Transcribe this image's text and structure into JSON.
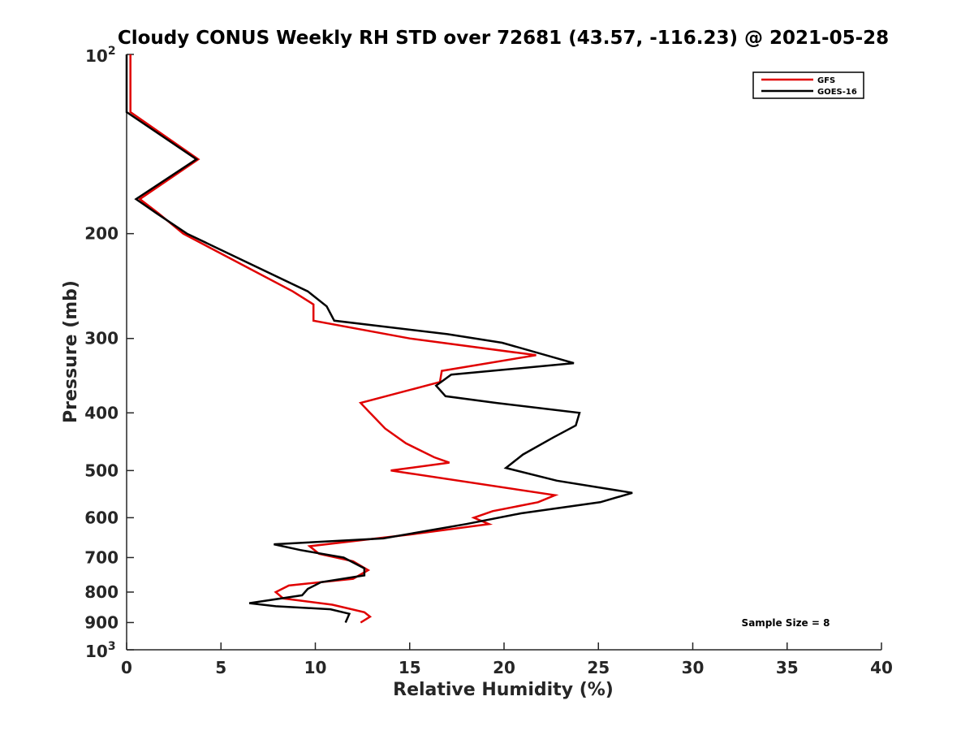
{
  "chart_data": {
    "type": "line",
    "title": "Cloudy CONUS Weekly RH STD over 72681 (43.57, -116.23) @ 2021-05-28",
    "xlabel": "Relative Humidity (%)",
    "ylabel": "Pressure (mb)",
    "xlim": [
      0,
      40
    ],
    "ylim": [
      100,
      1000
    ],
    "y_scale": "log",
    "y_reversed": true,
    "grid": false,
    "legend_position": "top-right",
    "annotation": "Sample Size = 8",
    "x_ticks": [
      {
        "value": 0,
        "label": "0"
      },
      {
        "value": 5,
        "label": "5"
      },
      {
        "value": 10,
        "label": "10"
      },
      {
        "value": 15,
        "label": "15"
      },
      {
        "value": 20,
        "label": "20"
      },
      {
        "value": 25,
        "label": "25"
      },
      {
        "value": 30,
        "label": "30"
      },
      {
        "value": 35,
        "label": "35"
      },
      {
        "value": 40,
        "label": "40"
      }
    ],
    "y_ticks": [
      {
        "value": 100,
        "base": "10",
        "exp": "2"
      },
      {
        "value": 200,
        "label": "200"
      },
      {
        "value": 300,
        "label": "300"
      },
      {
        "value": 400,
        "label": "400"
      },
      {
        "value": 500,
        "label": "500"
      },
      {
        "value": 600,
        "label": "600"
      },
      {
        "value": 700,
        "label": "700"
      },
      {
        "value": 800,
        "label": "800"
      },
      {
        "value": 900,
        "label": "900"
      },
      {
        "value": 1000,
        "base": "10",
        "exp": "3"
      }
    ],
    "series": [
      {
        "name": "GFS",
        "color": "#e00000",
        "points": [
          [
            0.2,
            100
          ],
          [
            0.2,
            125
          ],
          [
            3.8,
            150
          ],
          [
            0.7,
            175
          ],
          [
            1.7,
            185
          ],
          [
            3.0,
            200
          ],
          [
            8.8,
            250
          ],
          [
            9.9,
            263
          ],
          [
            9.9,
            280
          ],
          [
            15.0,
            300
          ],
          [
            21.7,
            320
          ],
          [
            16.7,
            340
          ],
          [
            16.6,
            355
          ],
          [
            12.4,
            385
          ],
          [
            12.9,
            400
          ],
          [
            13.7,
            425
          ],
          [
            14.8,
            450
          ],
          [
            16.3,
            475
          ],
          [
            17.1,
            485
          ],
          [
            14.0,
            500
          ],
          [
            22.7,
            550
          ],
          [
            21.8,
            565
          ],
          [
            19.4,
            585
          ],
          [
            18.4,
            600
          ],
          [
            19.2,
            615
          ],
          [
            15.1,
            640
          ],
          [
            9.7,
            670
          ],
          [
            10.2,
            690
          ],
          [
            12.0,
            710
          ],
          [
            12.8,
            735
          ],
          [
            12.0,
            760
          ],
          [
            8.6,
            780
          ],
          [
            7.9,
            800
          ],
          [
            8.3,
            820
          ],
          [
            10.9,
            840
          ],
          [
            12.6,
            865
          ],
          [
            12.9,
            880
          ],
          [
            12.4,
            900
          ]
        ]
      },
      {
        "name": "GOES-16",
        "color": "#000000",
        "points": [
          [
            0.0,
            100
          ],
          [
            0.0,
            125
          ],
          [
            3.7,
            150
          ],
          [
            0.5,
            175
          ],
          [
            1.6,
            185
          ],
          [
            3.2,
            200
          ],
          [
            9.6,
            250
          ],
          [
            10.6,
            265
          ],
          [
            11.0,
            280
          ],
          [
            17.0,
            295
          ],
          [
            19.9,
            305
          ],
          [
            23.7,
            330
          ],
          [
            17.2,
            345
          ],
          [
            16.4,
            360
          ],
          [
            16.9,
            375
          ],
          [
            19.6,
            385
          ],
          [
            24.0,
            400
          ],
          [
            23.8,
            420
          ],
          [
            22.6,
            440
          ],
          [
            21.0,
            470
          ],
          [
            20.1,
            495
          ],
          [
            22.8,
            520
          ],
          [
            26.8,
            545
          ],
          [
            25.1,
            565
          ],
          [
            20.9,
            590
          ],
          [
            18.0,
            615
          ],
          [
            13.6,
            650
          ],
          [
            7.8,
            665
          ],
          [
            9.2,
            680
          ],
          [
            11.5,
            700
          ],
          [
            12.6,
            730
          ],
          [
            12.6,
            750
          ],
          [
            10.3,
            770
          ],
          [
            9.6,
            790
          ],
          [
            9.3,
            810
          ],
          [
            6.5,
            835
          ],
          [
            7.9,
            845
          ],
          [
            10.8,
            855
          ],
          [
            11.8,
            870
          ],
          [
            11.6,
            900
          ]
        ]
      }
    ]
  }
}
